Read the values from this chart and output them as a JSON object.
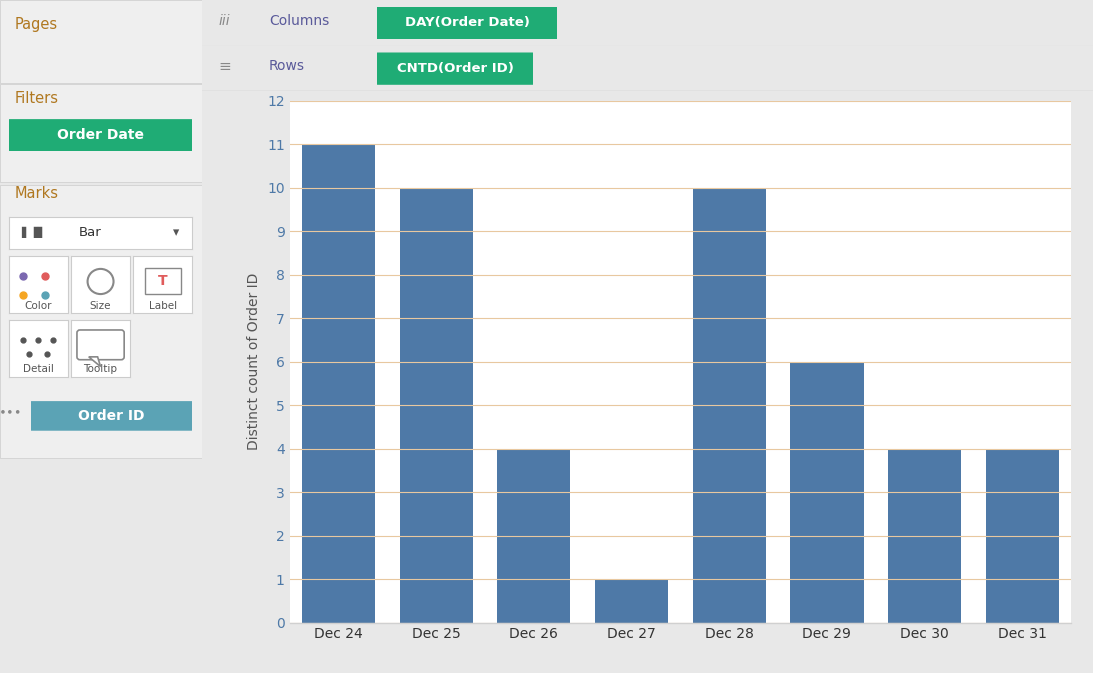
{
  "categories": [
    "Dec 24",
    "Dec 25",
    "Dec 26",
    "Dec 27",
    "Dec 28",
    "Dec 29",
    "Dec 30",
    "Dec 31"
  ],
  "values": [
    11,
    10,
    4,
    1,
    10,
    6,
    4,
    4
  ],
  "bar_color": "#4e79a7",
  "background_color": "#e8e8e8",
  "chart_bg": "#ffffff",
  "left_panel_bg": "#efefef",
  "ylim": [
    0,
    12
  ],
  "yticks": [
    0,
    1,
    2,
    3,
    4,
    5,
    6,
    7,
    8,
    9,
    10,
    11,
    12
  ],
  "ylabel": "Distinct count of Order ID",
  "gridline_color": "#e8c8a0",
  "columns_pill": "DAY(Order Date)",
  "rows_pill": "CNTD(Order ID)",
  "filter_pill": "Order Date",
  "detail_pill": "Order ID",
  "green_pill_color": "#1fac75",
  "teal_pill_color": "#5ba3b5",
  "pill_text_color": "#ffffff",
  "header_bg": "#f5f5f5",
  "pages_text": "Pages",
  "filters_text": "Filters",
  "marks_text": "Marks",
  "columns_text": "Columns",
  "rows_text": "Rows",
  "bar_type": "Bar",
  "bar_width": 0.75,
  "ytick_color": "#4e79a7",
  "axis_label_color": "#555555",
  "separator_color": "#d0d0d0",
  "section_label_color": "#b07820",
  "panel_border_color": "#cccccc",
  "dropdown_border_color": "#cccccc",
  "button_border_color": "#cccccc"
}
